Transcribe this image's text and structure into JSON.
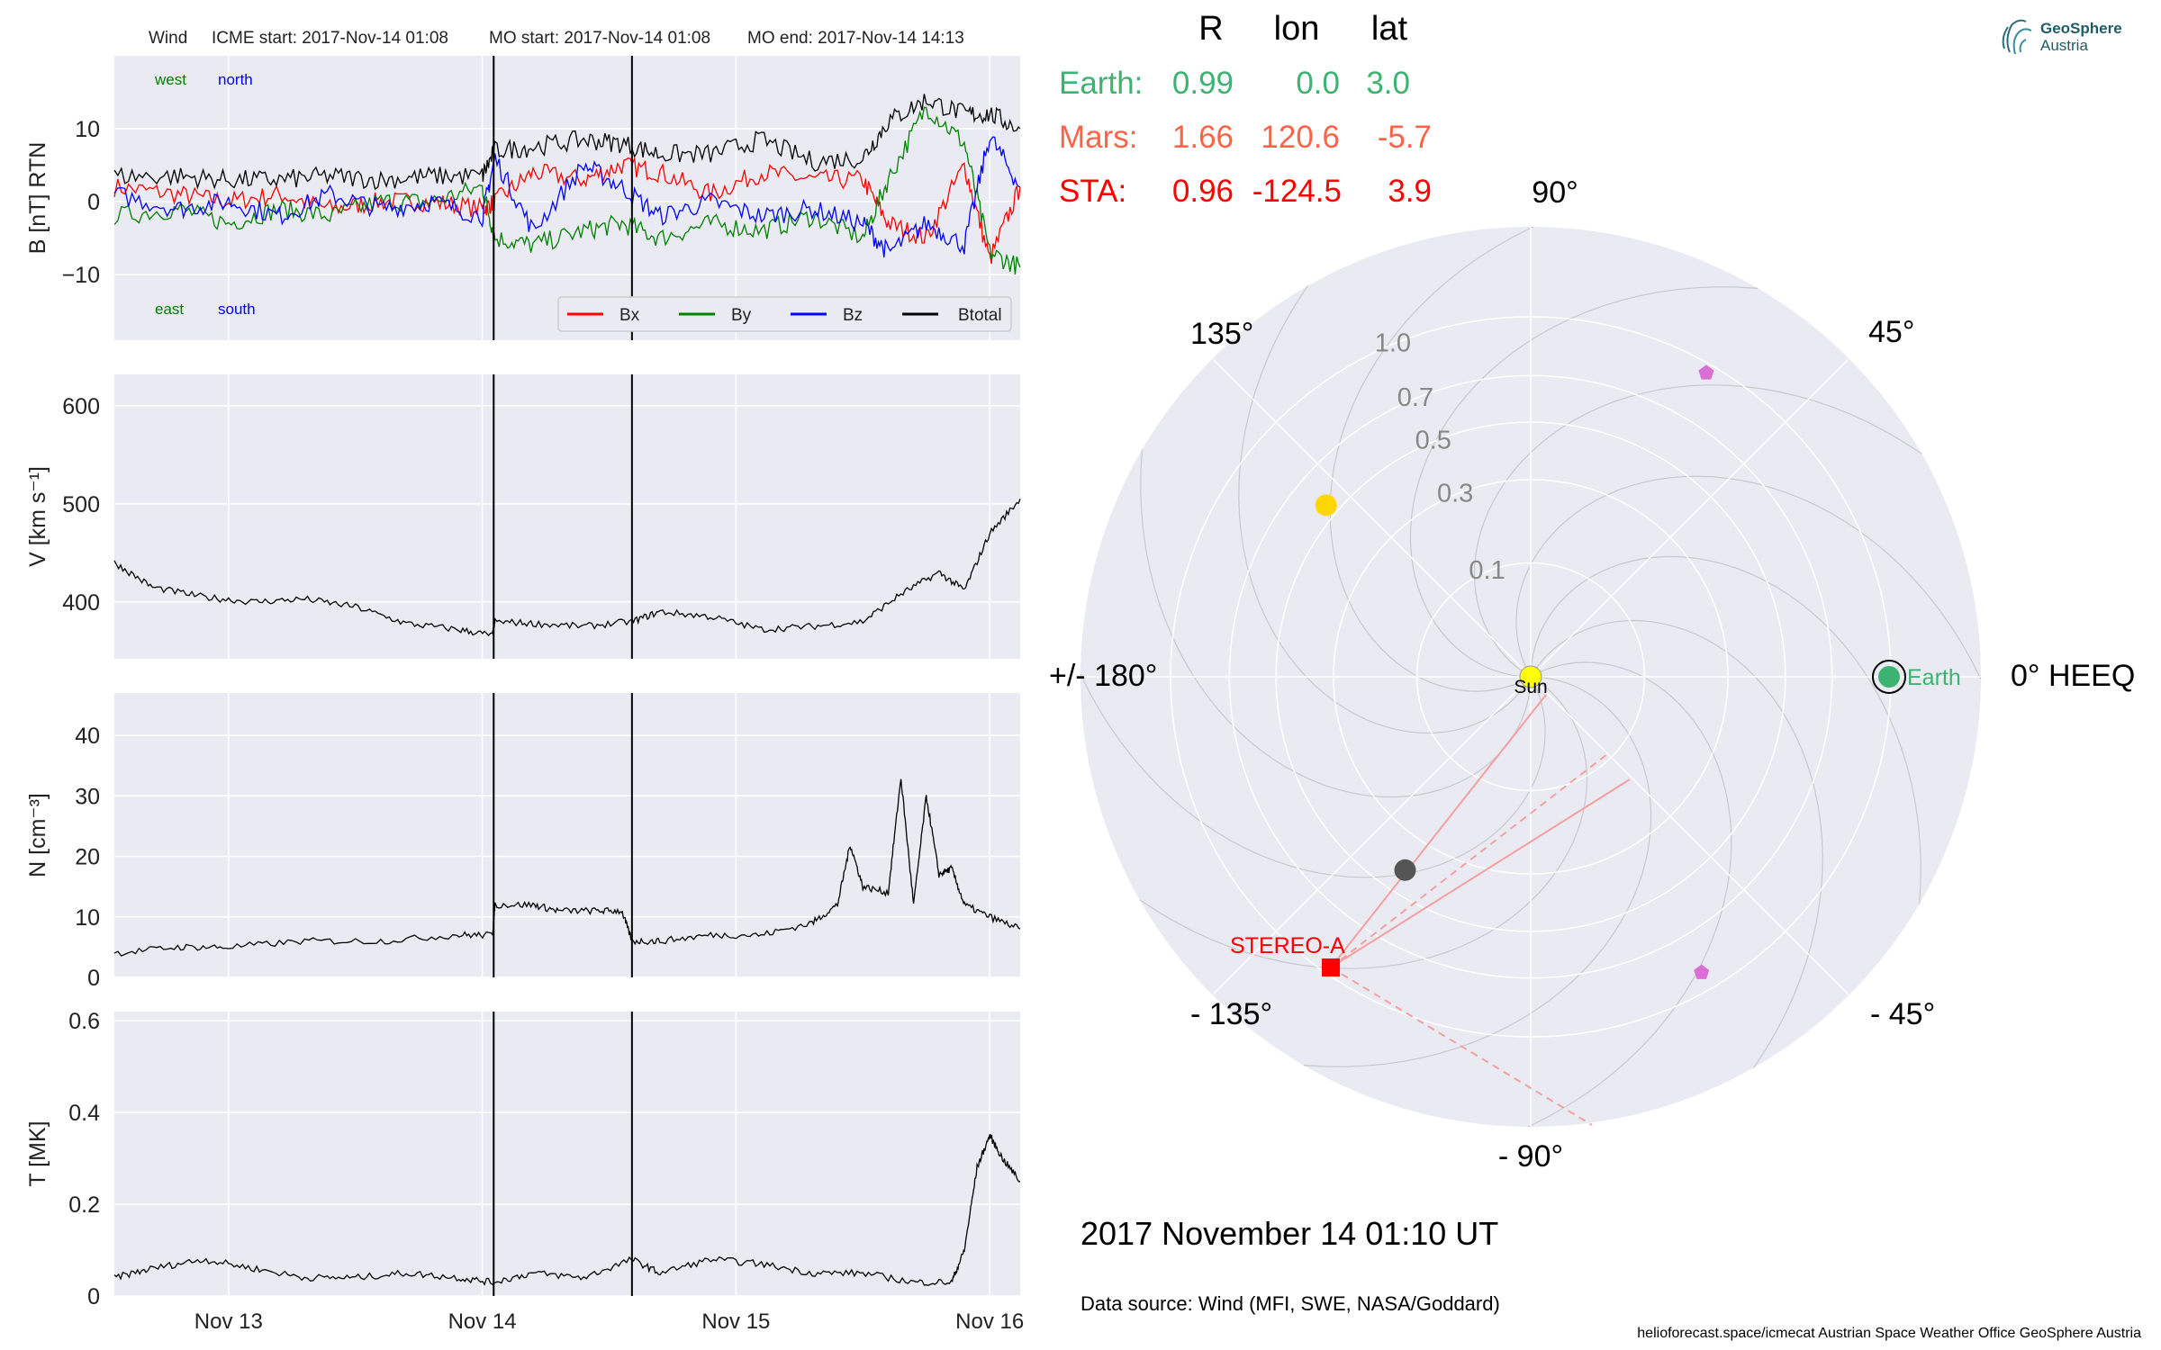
{
  "header": {
    "spacecraft": "Wind",
    "icme_start": "ICME start: 2017-Nov-14 01:08",
    "mo_start": "MO start: 2017-Nov-14 01:08",
    "mo_end": "MO end: 2017-Nov-14 14:13"
  },
  "date_label": "2017 November 14  01:10 UT",
  "source_label": "Data source: Wind (MFI, SWE, NASA/Goddard)",
  "footer_label": "helioforecast.space/icmecat   Austrian Space Weather Office   GeoSphere Austria",
  "logo": {
    "line1": "GeoSphere",
    "line2": "Austria",
    "icon": "geosphere-logo-icon"
  },
  "table": {
    "headers": [
      "R",
      "lon",
      "lat"
    ],
    "rows": [
      {
        "label": "Earth:",
        "R": "0.99",
        "lon": "0.0",
        "lat": "3.0",
        "color": "#3cb371"
      },
      {
        "label": "Mars:",
        "R": "1.66",
        "lon": "120.6",
        "lat": "-5.7",
        "color": "#ff6347"
      },
      {
        "label": "STA:",
        "R": "0.96",
        "lon": "-124.5",
        "lat": "3.9",
        "color": "#ff0000"
      }
    ]
  },
  "colors": {
    "bx": "#ff0000",
    "by": "#008000",
    "bz": "#0000ff",
    "btotal": "#000000",
    "panel_bg": "#eaeaf2",
    "earth": "#3cb371",
    "sta": "#ff0000",
    "mars": "#ff6347"
  },
  "chart_data": [
    {
      "type": "line",
      "panel": "B",
      "ylabel": "B [nT] RTN",
      "ylim": [
        -19,
        20
      ],
      "yticks": [
        -10,
        0,
        10
      ],
      "xticks": [
        "Nov 13",
        "Nov 14",
        "Nov 15",
        "Nov 16"
      ],
      "x_range_days": [
        12.55,
        16.12
      ],
      "annotations": {
        "west": "west",
        "north": "north",
        "east": "east",
        "south": "south"
      },
      "legend": "bottom-right",
      "series": [
        {
          "name": "Bx",
          "color": "#ff0000",
          "x": [
            12.55,
            12.8,
            13.0,
            13.2,
            13.4,
            13.6,
            13.8,
            14.0,
            14.05,
            14.2,
            14.4,
            14.55,
            14.7,
            14.9,
            15.1,
            15.3,
            15.5,
            15.6,
            15.75,
            15.9,
            16.0,
            16.12
          ],
          "y": [
            2,
            1,
            0,
            1,
            -1,
            0,
            0,
            -1,
            0,
            4,
            3,
            5,
            4,
            1,
            4,
            3,
            3,
            -3,
            -5,
            5,
            -8,
            2
          ]
        },
        {
          "name": "By",
          "color": "#008000",
          "x": [
            12.55,
            12.8,
            13.0,
            13.2,
            13.4,
            13.6,
            13.8,
            14.0,
            14.05,
            14.2,
            14.4,
            14.55,
            14.7,
            14.9,
            15.1,
            15.3,
            15.5,
            15.6,
            15.75,
            15.9,
            16.0,
            16.12
          ],
          "y": [
            -2,
            -1,
            -3,
            -1,
            -2,
            0,
            0,
            2,
            -5,
            -6,
            -4,
            -3,
            -5,
            -3,
            -4,
            -2,
            -5,
            3,
            13,
            8,
            -7,
            -9
          ]
        },
        {
          "name": "Bz",
          "color": "#0000ff",
          "x": [
            12.55,
            12.8,
            13.0,
            13.2,
            13.4,
            13.6,
            13.8,
            14.0,
            14.05,
            14.2,
            14.4,
            14.55,
            14.7,
            14.9,
            15.1,
            15.3,
            15.5,
            15.6,
            15.75,
            15.9,
            16.0,
            16.12
          ],
          "y": [
            1,
            -1,
            0,
            -2,
            1,
            -1,
            0,
            -2,
            6,
            -4,
            5,
            2,
            -2,
            0,
            -2,
            -1,
            -3,
            -7,
            -3,
            -6,
            9,
            2
          ]
        },
        {
          "name": "Btotal",
          "color": "#000000",
          "x": [
            12.55,
            12.8,
            13.0,
            13.2,
            13.4,
            13.6,
            13.8,
            14.0,
            14.05,
            14.2,
            14.4,
            14.55,
            14.7,
            14.9,
            15.1,
            15.3,
            15.5,
            15.6,
            15.75,
            15.9,
            16.0,
            16.12
          ],
          "y": [
            3.5,
            3.5,
            3,
            3,
            3.5,
            3,
            3.5,
            3.5,
            7,
            7.5,
            8.5,
            8,
            6.5,
            6.5,
            8.5,
            5.5,
            6,
            11,
            14,
            12,
            12,
            10
          ]
        }
      ],
      "vlines": [
        14.045,
        14.59
      ]
    },
    {
      "type": "line",
      "panel": "V",
      "ylabel": "V [km s⁻¹]",
      "ylim": [
        342,
        632
      ],
      "yticks": [
        400,
        500,
        600
      ],
      "series": [
        {
          "name": "",
          "color": "#000000",
          "x": [
            12.55,
            12.7,
            12.9,
            13.1,
            13.3,
            13.5,
            13.7,
            13.9,
            14.04,
            14.05,
            14.2,
            14.4,
            14.59,
            14.7,
            14.9,
            15.1,
            15.3,
            15.5,
            15.65,
            15.8,
            15.9,
            16.0,
            16.12
          ],
          "y": [
            440,
            415,
            405,
            400,
            403,
            395,
            378,
            372,
            366,
            380,
            378,
            375,
            380,
            390,
            385,
            372,
            375,
            380,
            408,
            430,
            412,
            470,
            505
          ]
        }
      ],
      "vlines": [
        14.045,
        14.59
      ]
    },
    {
      "type": "line",
      "panel": "N",
      "ylabel": "N [cm⁻³]",
      "ylim": [
        0,
        47
      ],
      "yticks": [
        0,
        10,
        20,
        30,
        40
      ],
      "series": [
        {
          "name": "",
          "color": "#000000",
          "x": [
            12.55,
            12.8,
            13.0,
            13.3,
            13.6,
            13.9,
            14.04,
            14.05,
            14.2,
            14.3,
            14.45,
            14.55,
            14.59,
            14.7,
            14.9,
            15.1,
            15.3,
            15.4,
            15.45,
            15.5,
            15.6,
            15.65,
            15.7,
            15.75,
            15.8,
            15.85,
            15.9,
            16.0,
            16.12
          ],
          "y": [
            4,
            5,
            5,
            6,
            6,
            7,
            7,
            12,
            12,
            11,
            11,
            11,
            6,
            6,
            7,
            7,
            9,
            12,
            22,
            15,
            14,
            33,
            12,
            30,
            17,
            18,
            12,
            10,
            8
          ]
        }
      ],
      "vlines": [
        14.045,
        14.59
      ]
    },
    {
      "type": "line",
      "panel": "T",
      "ylabel": "T [MK]",
      "ylim": [
        0,
        0.62
      ],
      "yticks": [
        0.0,
        0.2,
        0.4,
        0.6
      ],
      "series": [
        {
          "name": "",
          "color": "#000000",
          "x": [
            12.55,
            12.7,
            12.9,
            13.1,
            13.3,
            13.5,
            13.7,
            13.9,
            14.04,
            14.2,
            14.4,
            14.59,
            14.7,
            14.9,
            15.1,
            15.3,
            15.5,
            15.7,
            15.85,
            15.9,
            15.95,
            16.0,
            16.05,
            16.12
          ],
          "y": [
            0.04,
            0.06,
            0.08,
            0.06,
            0.04,
            0.04,
            0.05,
            0.04,
            0.03,
            0.05,
            0.04,
            0.08,
            0.05,
            0.08,
            0.07,
            0.05,
            0.05,
            0.03,
            0.03,
            0.1,
            0.28,
            0.35,
            0.3,
            0.25
          ]
        }
      ],
      "vlines": [
        14.045,
        14.59
      ]
    },
    {
      "type": "scatter",
      "panel": "polar",
      "rticks": [
        "0.1",
        "0.3",
        "0.5",
        "0.7",
        "1.0"
      ],
      "angle_labels": [
        "0° HEEQ",
        "45°",
        "90°",
        "135°",
        "+/- 180°",
        "- 135°",
        "- 90°",
        "- 45°"
      ],
      "points": [
        {
          "name": "Earth",
          "r": 0.99,
          "lon": 0.0,
          "color": "#3cb371",
          "label": "Earth"
        },
        {
          "name": "STEREO-A",
          "r": 0.96,
          "lon": -124.5,
          "color": "#ff0000",
          "label": "STEREO-A"
        },
        {
          "name": "Sun",
          "r": 0.0,
          "lon": 0.0,
          "color": "#ffff00",
          "label": "Sun"
        },
        {
          "name": "",
          "r": 0.55,
          "lon": 140.0,
          "color": "#ffd700",
          "label": ""
        },
        {
          "name": "",
          "r": 0.41,
          "lon": -123.0,
          "color": "#555555",
          "label": ""
        },
        {
          "name": "",
          "r": 0.95,
          "lon": 60.0,
          "color": "#da70d6",
          "label": ""
        },
        {
          "name": "",
          "r": 0.9,
          "lon": -60.0,
          "color": "#da70d6",
          "label": ""
        }
      ]
    }
  ]
}
